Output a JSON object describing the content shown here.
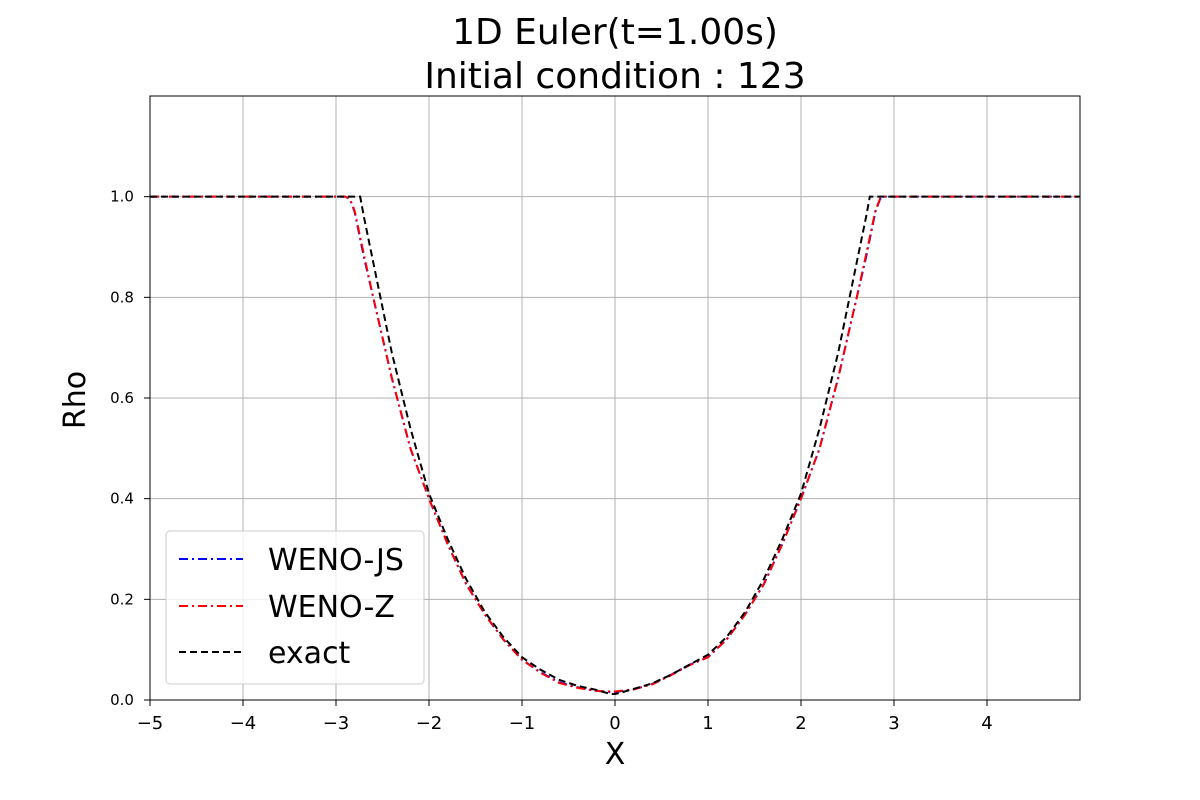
{
  "chart_data": {
    "type": "line",
    "title": "1D Euler(t=1.00s)",
    "subtitle": "Initial condition : 123",
    "xlabel": "X",
    "ylabel": "Rho",
    "xlim": [
      -5,
      5
    ],
    "ylim": [
      0,
      1.2
    ],
    "xticks": [
      -5,
      -4,
      -3,
      -2,
      -1,
      0,
      1,
      2,
      3,
      4
    ],
    "xtick_labels": [
      "−5",
      "−4",
      "−3",
      "−2",
      "−1",
      "0",
      "1",
      "2",
      "3",
      "4"
    ],
    "yticks": [
      0,
      0.2,
      0.4,
      0.6,
      0.8,
      1.0
    ],
    "ytick_labels": [
      "0.0",
      "0.2",
      "0.4",
      "0.6",
      "0.8",
      "1.0"
    ],
    "grid": true,
    "legend": "lower-left",
    "series": [
      {
        "name": "WENO-JS",
        "color": "#0000ff",
        "style": "dashdot",
        "x": [
          -5,
          -2.9,
          -2.85,
          -2.8,
          -2.7,
          -2.6,
          -2.5,
          -2.4,
          -2.2,
          -2.0,
          -1.8,
          -1.6,
          -1.4,
          -1.2,
          -1.0,
          -0.8,
          -0.6,
          -0.4,
          -0.2,
          -0.05,
          0,
          0.2,
          0.4,
          0.6,
          0.8,
          1.0,
          1.2,
          1.4,
          1.6,
          1.8,
          2.0,
          2.2,
          2.4,
          2.6,
          2.7,
          2.8,
          2.85,
          2.9,
          5
        ],
        "y": [
          1.0,
          1.0,
          0.995,
          0.97,
          0.88,
          0.8,
          0.72,
          0.64,
          0.5,
          0.4,
          0.31,
          0.23,
          0.17,
          0.12,
          0.08,
          0.055,
          0.035,
          0.025,
          0.018,
          0.016,
          0.016,
          0.021,
          0.032,
          0.05,
          0.07,
          0.085,
          0.12,
          0.17,
          0.23,
          0.31,
          0.4,
          0.5,
          0.64,
          0.8,
          0.88,
          0.97,
          0.995,
          1.0,
          1.0
        ]
      },
      {
        "name": "WENO-Z",
        "color": "#ff0000",
        "style": "dashdot",
        "x": [
          -5,
          -2.9,
          -2.85,
          -2.8,
          -2.7,
          -2.6,
          -2.5,
          -2.4,
          -2.2,
          -2.0,
          -1.8,
          -1.6,
          -1.4,
          -1.2,
          -1.0,
          -0.8,
          -0.6,
          -0.4,
          -0.2,
          -0.05,
          0,
          0.2,
          0.4,
          0.6,
          0.8,
          1.0,
          1.2,
          1.4,
          1.6,
          1.8,
          2.0,
          2.2,
          2.4,
          2.6,
          2.7,
          2.8,
          2.85,
          2.9,
          5
        ],
        "y": [
          1.0,
          1.0,
          0.996,
          0.972,
          0.885,
          0.8,
          0.72,
          0.64,
          0.5,
          0.4,
          0.31,
          0.23,
          0.17,
          0.12,
          0.08,
          0.054,
          0.034,
          0.024,
          0.018,
          0.017,
          0.017,
          0.021,
          0.031,
          0.049,
          0.069,
          0.085,
          0.12,
          0.17,
          0.23,
          0.31,
          0.4,
          0.5,
          0.64,
          0.8,
          0.885,
          0.972,
          0.996,
          1.0,
          1.0
        ]
      },
      {
        "name": "exact",
        "color": "#000000",
        "style": "dashed",
        "x": [
          -5,
          -2.74,
          -2.7,
          -2.6,
          -2.5,
          -2.4,
          -2.2,
          -2.0,
          -1.8,
          -1.6,
          -1.4,
          -1.2,
          -1.0,
          -0.8,
          -0.6,
          -0.4,
          -0.2,
          -0.05,
          0,
          0.05,
          0.2,
          0.4,
          0.6,
          0.8,
          1.0,
          1.2,
          1.4,
          1.6,
          1.8,
          2.0,
          2.2,
          2.4,
          2.5,
          2.6,
          2.7,
          2.74,
          5
        ],
        "y": [
          1.0,
          1.0,
          0.96,
          0.87,
          0.78,
          0.69,
          0.54,
          0.41,
          0.32,
          0.24,
          0.175,
          0.125,
          0.085,
          0.06,
          0.04,
          0.028,
          0.02,
          0.012,
          0.012,
          0.014,
          0.022,
          0.033,
          0.05,
          0.07,
          0.09,
          0.125,
          0.175,
          0.24,
          0.32,
          0.41,
          0.54,
          0.69,
          0.78,
          0.87,
          0.96,
          1.0,
          1.0
        ]
      }
    ]
  }
}
